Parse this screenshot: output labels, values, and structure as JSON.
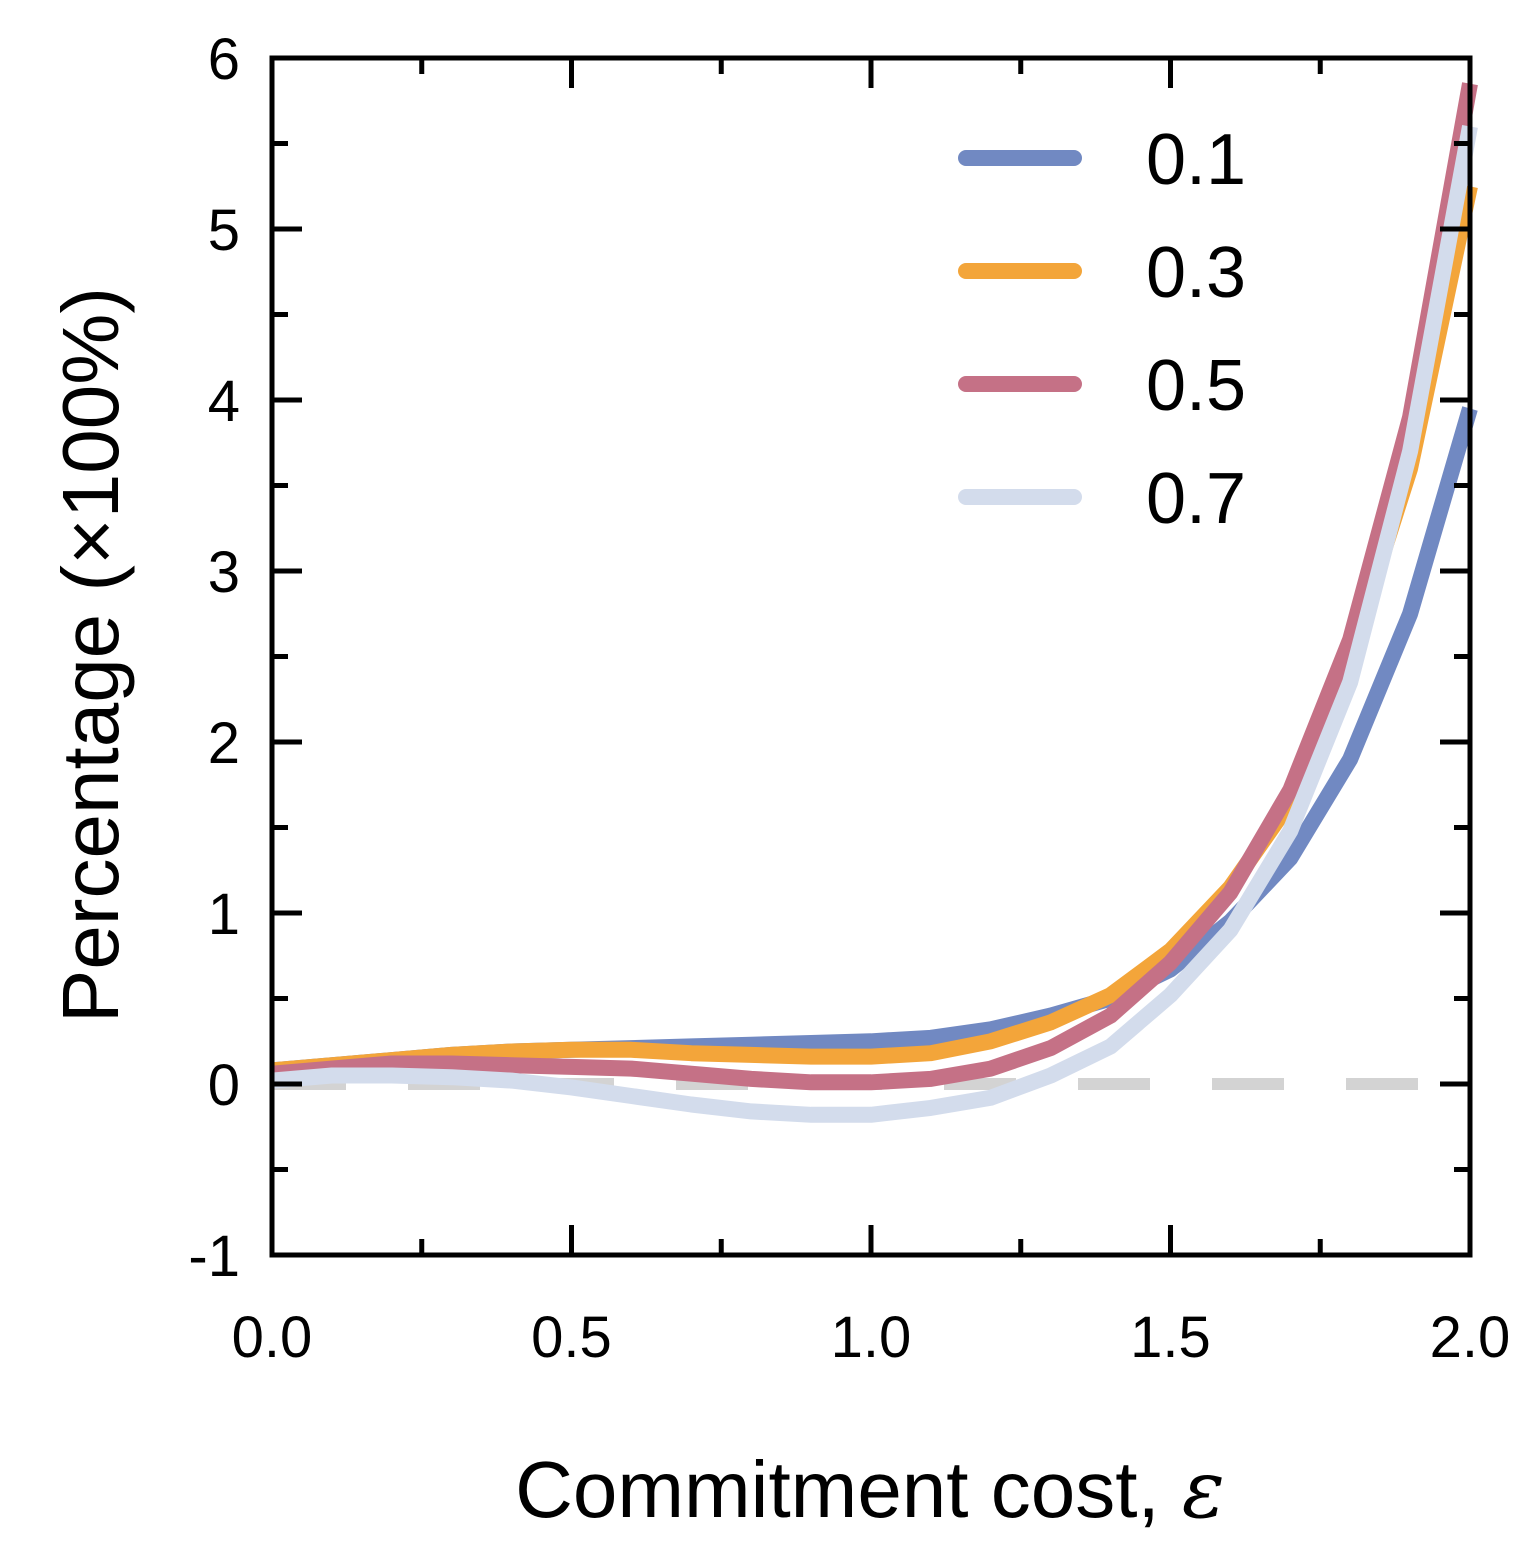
{
  "chart_data": {
    "type": "line",
    "xlabel": "Commitment cost, ",
    "xlabel_symbol": "ε",
    "ylabel": "Percentage (×100%)",
    "xlim": [
      0,
      2.0
    ],
    "ylim": [
      -1,
      6
    ],
    "xticks": [
      "0.0",
      "0.5",
      "1.0",
      "1.5",
      "2.0"
    ],
    "yticks": [
      "-1",
      "0",
      "1",
      "2",
      "3",
      "4",
      "5",
      "6"
    ],
    "legend_position": "top-right",
    "reference_line": {
      "y": 0,
      "style": "dashed",
      "color": "#d3d3d3"
    },
    "x": [
      0,
      0.1,
      0.2,
      0.3,
      0.4,
      0.5,
      0.6,
      0.7,
      0.8,
      0.9,
      1.0,
      1.1,
      1.2,
      1.3,
      1.4,
      1.5,
      1.6,
      1.7,
      1.8,
      1.9,
      2.0
    ],
    "series": [
      {
        "name": "0.1",
        "color": "#7189c2",
        "values": [
          0.08,
          0.11,
          0.14,
          0.17,
          0.19,
          0.2,
          0.21,
          0.22,
          0.23,
          0.24,
          0.25,
          0.27,
          0.32,
          0.4,
          0.5,
          0.67,
          0.95,
          1.32,
          1.9,
          2.75,
          3.95
        ]
      },
      {
        "name": "0.3",
        "color": "#f3a53a",
        "values": [
          0.08,
          0.11,
          0.14,
          0.17,
          0.19,
          0.2,
          0.2,
          0.18,
          0.17,
          0.16,
          0.16,
          0.18,
          0.25,
          0.36,
          0.52,
          0.78,
          1.15,
          1.65,
          2.5,
          3.6,
          5.25
        ]
      },
      {
        "name": "0.5",
        "color": "#c57186",
        "values": [
          0.06,
          0.09,
          0.12,
          0.12,
          0.11,
          0.1,
          0.09,
          0.06,
          0.03,
          0.01,
          0.01,
          0.03,
          0.09,
          0.21,
          0.4,
          0.71,
          1.12,
          1.72,
          2.6,
          3.9,
          5.85
        ]
      },
      {
        "name": "0.7",
        "color": "#d3dcec",
        "values": [
          0.02,
          0.05,
          0.05,
          0.04,
          0.02,
          -0.02,
          -0.07,
          -0.12,
          -0.16,
          -0.18,
          -0.18,
          -0.14,
          -0.08,
          0.05,
          0.22,
          0.52,
          0.9,
          1.48,
          2.35,
          3.7,
          5.6
        ]
      }
    ]
  }
}
